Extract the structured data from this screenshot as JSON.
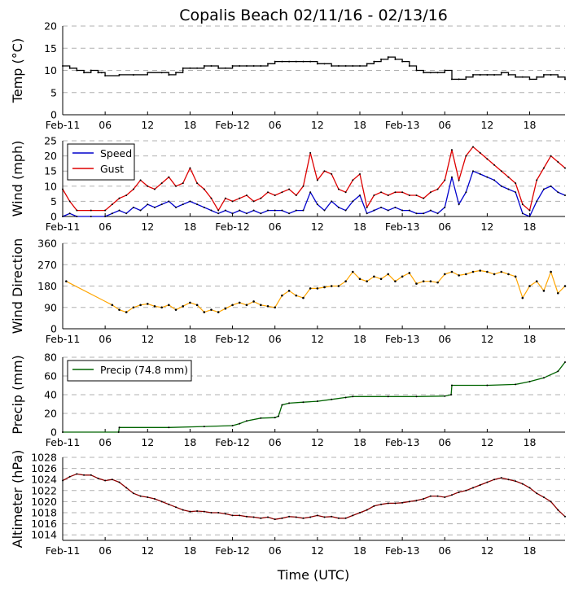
{
  "figure": {
    "title": "Copalis Beach 02/11/16 - 02/13/16",
    "xlabel": "Time (UTC)"
  },
  "chart_data": [
    {
      "type": "line",
      "id": "temp",
      "ylabel": "Temp ($^\\circ$C)",
      "ylabel_display": "Temp (°C)",
      "ylim": [
        0,
        20
      ],
      "yticks": [
        0,
        5,
        10,
        15,
        20
      ],
      "xticks": [
        "Feb-11",
        "06",
        "12",
        "18",
        "Feb-12",
        "06",
        "12",
        "18",
        "Feb-13",
        "06",
        "12",
        "18"
      ],
      "xlim_hours": [
        0,
        71
      ],
      "legend": null,
      "series": [
        {
          "name": "Temp",
          "color": "#000000",
          "step": true,
          "x": [
            0,
            1,
            2,
            3,
            4,
            5,
            5.5,
            6,
            8,
            10,
            12,
            14,
            15,
            16,
            17,
            18,
            19,
            20,
            21,
            22,
            23,
            24,
            25,
            26,
            27,
            28,
            29,
            30,
            31,
            32,
            33,
            34,
            35,
            36,
            37,
            38,
            39,
            40,
            41,
            42,
            43,
            44,
            45,
            46,
            47,
            48,
            49,
            50,
            51,
            52,
            53,
            54,
            55,
            56,
            57,
            58,
            59,
            60,
            61,
            62,
            63,
            64,
            65,
            66,
            67,
            68,
            69,
            70,
            71
          ],
          "y": [
            11,
            10.5,
            10,
            9.5,
            10,
            9.5,
            9.5,
            8.8,
            9,
            9,
            9.5,
            9.5,
            9,
            9.5,
            10.5,
            10.5,
            10.5,
            11,
            11,
            10.5,
            10.5,
            11,
            11,
            11,
            11,
            11,
            11.5,
            12,
            12,
            12,
            12,
            12,
            12,
            11.5,
            11.5,
            11,
            11,
            11,
            11,
            11,
            11.5,
            12,
            12.5,
            13,
            12.5,
            12,
            11,
            10,
            9.5,
            9.5,
            9.5,
            10,
            8,
            8,
            8.5,
            9,
            9,
            9,
            9,
            9.5,
            9,
            8.5,
            8.5,
            8,
            8.5,
            9,
            9,
            8.5,
            8
          ]
        }
      ]
    },
    {
      "type": "line",
      "id": "wind",
      "ylabel": "Wind (mph)",
      "ylim": [
        0,
        25
      ],
      "yticks": [
        0,
        5,
        10,
        15,
        20,
        25
      ],
      "xticks": [
        "Feb-11",
        "06",
        "12",
        "18",
        "Feb-12",
        "06",
        "12",
        "18",
        "Feb-13",
        "06",
        "12",
        "18"
      ],
      "xlim_hours": [
        0,
        71
      ],
      "legend": {
        "location": "top-left",
        "entries": [
          "Speed",
          "Gust"
        ]
      },
      "series": [
        {
          "name": "Speed",
          "color": "#0000cc",
          "x": [
            0,
            1,
            2,
            4,
            6,
            7,
            8,
            9,
            10,
            11,
            12,
            13,
            14,
            15,
            16,
            17,
            18,
            19,
            20,
            21,
            22,
            23,
            24,
            25,
            26,
            27,
            28,
            29,
            30,
            31,
            32,
            33,
            34,
            35,
            36,
            37,
            38,
            39,
            40,
            41,
            42,
            43,
            44,
            45,
            46,
            47,
            48,
            49,
            50,
            51,
            52,
            53,
            54,
            55,
            56,
            57,
            58,
            59,
            60,
            61,
            62,
            63,
            64,
            65,
            66,
            67,
            68,
            69,
            70,
            71
          ],
          "y": [
            0,
            1,
            0,
            0,
            0,
            1,
            2,
            1,
            3,
            2,
            4,
            3,
            4,
            5,
            3,
            4,
            5,
            4,
            3,
            2,
            1,
            2,
            1,
            2,
            1,
            2,
            1,
            2,
            2,
            2,
            1,
            2,
            2,
            8,
            4,
            2,
            5,
            3,
            2,
            5,
            7,
            1,
            2,
            3,
            2,
            3,
            2,
            2,
            1,
            1,
            2,
            1,
            3,
            13,
            4,
            8,
            15,
            14,
            13,
            12,
            10,
            9,
            8,
            1,
            0,
            5,
            9,
            10,
            8,
            7
          ]
        },
        {
          "name": "Gust",
          "color": "#dd0000",
          "x": [
            0,
            1,
            2,
            4,
            6,
            7,
            8,
            9,
            10,
            11,
            12,
            13,
            14,
            15,
            16,
            17,
            18,
            19,
            20,
            21,
            22,
            23,
            24,
            25,
            26,
            27,
            28,
            29,
            30,
            31,
            32,
            33,
            34,
            35,
            36,
            37,
            38,
            39,
            40,
            41,
            42,
            43,
            44,
            45,
            46,
            47,
            48,
            49,
            50,
            51,
            52,
            53,
            54,
            55,
            56,
            57,
            58,
            59,
            60,
            61,
            62,
            63,
            64,
            65,
            66,
            67,
            68,
            69,
            70,
            71
          ],
          "y": [
            9,
            5,
            2,
            2,
            2,
            4,
            6,
            7,
            9,
            12,
            10,
            9,
            11,
            13,
            10,
            11,
            16,
            11,
            9,
            6,
            2,
            6,
            5,
            6,
            7,
            5,
            6,
            8,
            7,
            8,
            9,
            7,
            10,
            21,
            12,
            15,
            14,
            9,
            8,
            12,
            14,
            3,
            7,
            8,
            7,
            8,
            8,
            7,
            7,
            6,
            8,
            9,
            12,
            22,
            12,
            20,
            23,
            21,
            19,
            17,
            15,
            13,
            11,
            4,
            2,
            12,
            16,
            20,
            18,
            16
          ]
        }
      ]
    },
    {
      "type": "scatter",
      "id": "wind_direction",
      "ylabel": "Wind Direction",
      "ylim": [
        0,
        360
      ],
      "yticks": [
        0,
        90,
        180,
        270,
        360
      ],
      "xticks": [
        "Feb-11",
        "06",
        "12",
        "18",
        "Feb-12",
        "06",
        "12",
        "18",
        "Feb-13",
        "06",
        "12",
        "18"
      ],
      "xlim_hours": [
        0,
        71
      ],
      "legend": null,
      "series": [
        {
          "name": "Wind Direction",
          "color": "#ffa500",
          "x": [
            0.5,
            7,
            8,
            9,
            10,
            11,
            12,
            13,
            14,
            15,
            16,
            17,
            18,
            19,
            20,
            21,
            22,
            23,
            24,
            25,
            26,
            27,
            28,
            29,
            30,
            31,
            32,
            33,
            34,
            35,
            36,
            37,
            38,
            39,
            40,
            41,
            42,
            43,
            44,
            45,
            46,
            47,
            48,
            49,
            50,
            51,
            52,
            53,
            54,
            55,
            56,
            57,
            58,
            59,
            60,
            61,
            62,
            63,
            64,
            65,
            66,
            67,
            68,
            69,
            70,
            71
          ],
          "y": [
            200,
            100,
            80,
            70,
            90,
            100,
            105,
            95,
            90,
            100,
            80,
            95,
            110,
            100,
            70,
            80,
            70,
            85,
            100,
            110,
            100,
            115,
            100,
            95,
            90,
            140,
            160,
            140,
            130,
            170,
            170,
            175,
            180,
            180,
            200,
            240,
            210,
            200,
            220,
            210,
            230,
            200,
            220,
            235,
            190,
            200,
            200,
            195,
            230,
            240,
            225,
            230,
            240,
            245,
            240,
            230,
            240,
            230,
            220,
            130,
            180,
            200,
            160,
            240,
            150,
            180
          ]
        }
      ]
    },
    {
      "type": "line",
      "id": "precip",
      "ylabel": "Precip (mm)",
      "ylim": [
        0,
        80
      ],
      "yticks": [
        0,
        20,
        40,
        60,
        80
      ],
      "xticks": [
        "Feb-11",
        "06",
        "12",
        "18",
        "Feb-12",
        "06",
        "12",
        "18",
        "Feb-13",
        "06",
        "12",
        "18"
      ],
      "xlim_hours": [
        0,
        71
      ],
      "legend": {
        "location": "top-left",
        "entries": [
          "Precip (74.8 mm)"
        ]
      },
      "series": [
        {
          "name": "Precip (74.8 mm)",
          "color": "#006400",
          "x": [
            0,
            7.9,
            8,
            15,
            20,
            24,
            25,
            26,
            28,
            30,
            30.5,
            31,
            32,
            34,
            36,
            38,
            40,
            41,
            46,
            50,
            54,
            54.9,
            55,
            60,
            64,
            66,
            68,
            70,
            71
          ],
          "y": [
            0,
            0,
            5,
            5,
            6,
            7,
            9,
            12,
            15,
            15.5,
            17,
            29,
            31,
            32,
            33,
            35,
            37,
            38,
            38,
            38,
            38.5,
            40,
            50,
            50,
            51,
            54,
            58,
            65,
            74.8
          ]
        }
      ]
    },
    {
      "type": "line",
      "id": "altimeter",
      "ylabel": "Altimeter (hPa)",
      "ylim": [
        1013,
        1028
      ],
      "yticks": [
        1014,
        1016,
        1018,
        1020,
        1022,
        1024,
        1026,
        1028
      ],
      "xticks": [
        "Feb-11",
        "06",
        "12",
        "18",
        "Feb-12",
        "06",
        "12",
        "18",
        "Feb-13",
        "06",
        "12",
        "18"
      ],
      "xlim_hours": [
        0,
        71
      ],
      "legend": null,
      "series": [
        {
          "name": "Altimeter",
          "color": "#8b0000",
          "x": [
            0,
            1,
            2,
            3,
            4,
            5,
            6,
            7,
            8,
            9,
            10,
            11,
            12,
            13,
            14,
            15,
            16,
            17,
            18,
            19,
            20,
            21,
            22,
            23,
            24,
            25,
            26,
            27,
            28,
            29,
            30,
            31,
            32,
            33,
            34,
            35,
            36,
            37,
            38,
            39,
            40,
            41,
            42,
            43,
            44,
            45,
            46,
            47,
            48,
            49,
            50,
            51,
            52,
            53,
            54,
            55,
            56,
            57,
            58,
            59,
            60,
            61,
            62,
            63,
            64,
            65,
            66,
            67,
            68,
            69,
            70,
            71
          ],
          "y": [
            1023.8,
            1024.5,
            1025,
            1024.8,
            1024.8,
            1024.2,
            1023.8,
            1024,
            1023.5,
            1022.5,
            1021.5,
            1021,
            1020.8,
            1020.5,
            1020,
            1019.5,
            1019,
            1018.5,
            1018.2,
            1018.3,
            1018.2,
            1018,
            1018,
            1017.8,
            1017.5,
            1017.5,
            1017.3,
            1017.2,
            1017,
            1017.2,
            1016.8,
            1017,
            1017.3,
            1017.2,
            1017,
            1017.2,
            1017.5,
            1017.2,
            1017.3,
            1017,
            1017,
            1017.5,
            1018,
            1018.5,
            1019.2,
            1019.5,
            1019.7,
            1019.7,
            1019.8,
            1020,
            1020.2,
            1020.5,
            1021,
            1021,
            1020.8,
            1021.2,
            1021.7,
            1022,
            1022.5,
            1023,
            1023.5,
            1024,
            1024.3,
            1024,
            1023.7,
            1023.2,
            1022.5,
            1021.5,
            1020.8,
            1020,
            1018.5,
            1017.3
          ]
        }
      ]
    }
  ]
}
